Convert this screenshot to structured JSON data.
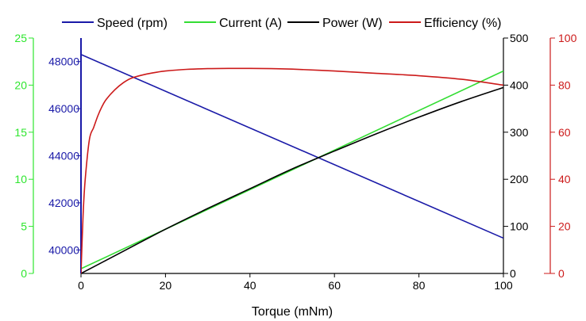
{
  "chart_data": {
    "type": "line",
    "title": "",
    "xlabel": "Torque (mNm)",
    "xlim": [
      0,
      100
    ],
    "x_ticks": [
      "0",
      "20",
      "40",
      "60",
      "80",
      "100"
    ],
    "grid": false,
    "legend_position": "top",
    "axes": {
      "current": {
        "side": "left-outer",
        "range": [
          0,
          25
        ],
        "ticks": [
          "0",
          "5",
          "10",
          "15",
          "20",
          "25"
        ],
        "color": "#2ee62e"
      },
      "speed": {
        "side": "left-inner",
        "range": [
          39000,
          49000
        ],
        "ticks": [
          "40000",
          "42000",
          "44000",
          "46000",
          "48000"
        ],
        "color": "#1a1aa8"
      },
      "power": {
        "side": "right-inner",
        "range": [
          0,
          500
        ],
        "ticks": [
          "0",
          "100",
          "200",
          "300",
          "400",
          "500"
        ],
        "color": "#000000"
      },
      "efficiency": {
        "side": "right-outer",
        "range": [
          0,
          100
        ],
        "ticks": [
          "0",
          "20",
          "40",
          "60",
          "80",
          "100"
        ],
        "color": "#cc1a1a"
      }
    },
    "series": [
      {
        "name": "Speed (rpm)",
        "axis": "speed",
        "color": "#1a1aa8",
        "x": [
          0,
          100
        ],
        "y": [
          48300,
          40500
        ]
      },
      {
        "name": "Current (A)",
        "axis": "current",
        "color": "#33dd33",
        "x": [
          0,
          100
        ],
        "y": [
          0.5,
          21.5
        ]
      },
      {
        "name": "Power (W)",
        "axis": "power",
        "color": "#000000",
        "x": [
          0,
          10,
          20,
          30,
          40,
          50,
          60,
          70,
          80,
          90,
          100
        ],
        "y": [
          0,
          47,
          94,
          138,
          180,
          222,
          260,
          297,
          332,
          365,
          395
        ]
      },
      {
        "name": "Efficiency (%)",
        "axis": "efficiency",
        "color": "#cc1a1a",
        "x": [
          0,
          0.5,
          1,
          2,
          3,
          4,
          5,
          6,
          8,
          10,
          12,
          15,
          18,
          20,
          25,
          30,
          35,
          40,
          45,
          50,
          60,
          70,
          80,
          90,
          100
        ],
        "y": [
          0,
          25,
          40,
          57,
          62,
          67,
          71,
          74,
          78,
          81,
          83,
          84.5,
          85.5,
          86,
          86.7,
          87,
          87.1,
          87.1,
          87,
          86.8,
          86,
          85,
          84,
          82.5,
          80
        ]
      }
    ]
  }
}
